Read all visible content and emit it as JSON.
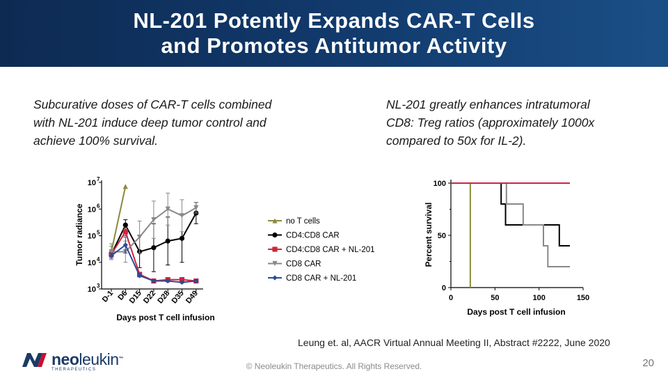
{
  "slide": {
    "title_line1": "NL-201 Potently Expands CAR-T Cells",
    "title_line2": "and Promotes Antitumor Activity",
    "left_text_lines": [
      "Subcurative doses of CAR-T cells combined",
      "with NL-201 induce deep tumor control and",
      "achieve 100% survival."
    ],
    "right_text_lines": [
      "NL-201 greatly  enhances intratumoral",
      "CD8: Treg ratios (approximately 1000x",
      "compared to 50x for IL-2)."
    ],
    "citation": "Leung et. al, AACR Virtual Annual Meeting II, Abstract #2222, June 2020",
    "footer": "© Neoleukin Therapeutics. All Rights Reserved.",
    "page_number": "20",
    "logo": {
      "word_bold": "neo",
      "word_light": "leukin",
      "tm": "™",
      "subtitle": "THERAPEUTICS"
    },
    "colors": {
      "header": "#123b6e",
      "accent_red": "#c8102e"
    }
  },
  "chart_data": [
    {
      "type": "line",
      "title": "",
      "xlabel": "Days post T cell infusion",
      "ylabel": "Tumor radiance",
      "yscale": "log10",
      "ylim_exp": [
        3,
        7
      ],
      "y_tick_labels": [
        {
          "base": "10",
          "exp": "7",
          "value": 7
        },
        {
          "base": "10",
          "exp": "6",
          "value": 6
        },
        {
          "base": "10",
          "exp": "5",
          "value": 5
        },
        {
          "base": "10",
          "exp": "4",
          "value": 4
        },
        {
          "base": "10",
          "exp": "3",
          "value": 3
        }
      ],
      "categories": [
        "D-1",
        "D6",
        "D15",
        "D22",
        "D28",
        "D35",
        "D49"
      ],
      "legend_position": "right",
      "series": [
        {
          "name": "no T cells",
          "color": "#8a8a3c",
          "marker": "tri-up",
          "x": [
            0,
            1
          ],
          "values": [
            4.4,
            6.85
          ],
          "err": [
            0.2,
            0
          ]
        },
        {
          "name": "CD4:CD8 CAR",
          "color": "#000000",
          "marker": "circle",
          "x": [
            0,
            1,
            2,
            3,
            4,
            5,
            6
          ],
          "values": [
            4.3,
            5.4,
            4.4,
            4.55,
            4.8,
            4.9,
            5.85
          ],
          "err": [
            0.15,
            0.2,
            0.6,
            0.9,
            0.9,
            0.9,
            0.4
          ]
        },
        {
          "name": "CD4:CD8 CAR + NL-201",
          "color": "#d0243a",
          "marker": "square",
          "x": [
            0,
            1,
            2,
            3,
            4,
            5,
            6
          ],
          "values": [
            4.3,
            5.15,
            3.55,
            3.3,
            3.35,
            3.35,
            3.3
          ],
          "err": [
            0.1,
            0.15,
            0.05,
            0.03,
            0.03,
            0.05,
            0.03
          ]
        },
        {
          "name": "CD8 CAR",
          "color": "#888888",
          "marker": "tri-down",
          "x": [
            0,
            1,
            2,
            3,
            4,
            5,
            6
          ],
          "values": [
            4.4,
            4.4,
            4.95,
            5.6,
            6.0,
            5.75,
            6.05
          ],
          "err": [
            0.3,
            0.4,
            0.6,
            0.7,
            0.6,
            0.6,
            0.2
          ]
        },
        {
          "name": "CD8 CAR + NL-201",
          "color": "#2c4a9a",
          "marker": "diamond",
          "x": [
            0,
            1,
            2,
            3,
            4,
            5,
            6
          ],
          "values": [
            4.25,
            4.65,
            3.5,
            3.3,
            3.3,
            3.25,
            3.3
          ],
          "err": [
            0.1,
            0.3,
            0.05,
            0.03,
            0.03,
            0.03,
            0.03
          ]
        }
      ],
      "brackets": [
        {
          "from": 1,
          "to": 2,
          "label": ","
        },
        {
          "from": 3,
          "to": 4,
          "label": ","
        }
      ]
    },
    {
      "type": "line",
      "title": "",
      "xlabel": "Days post T cell infusion",
      "ylabel": "Percent survival",
      "step": true,
      "xlim": [
        0,
        150
      ],
      "ylim": [
        0,
        100
      ],
      "x_ticks": [
        0,
        50,
        100,
        150
      ],
      "y_ticks": [
        0,
        50,
        100
      ],
      "x_tick_labels": [
        "0",
        "50",
        "100",
        "150"
      ],
      "y_tick_labels": [
        "0",
        "50",
        "100"
      ],
      "series": [
        {
          "name": "no T cells",
          "color": "#8a8a3c",
          "points": [
            [
              0,
              100
            ],
            [
              22,
              100
            ],
            [
              22,
              0
            ],
            [
              22,
              0
            ]
          ]
        },
        {
          "name": "CD4:CD8 CAR",
          "color": "#000000",
          "points": [
            [
              0,
              100
            ],
            [
              57,
              100
            ],
            [
              57,
              80
            ],
            [
              62,
              80
            ],
            [
              62,
              60
            ],
            [
              123,
              60
            ],
            [
              123,
              40
            ],
            [
              135,
              40
            ]
          ]
        },
        {
          "name": "CD8 CAR",
          "color": "#888888",
          "points": [
            [
              0,
              100
            ],
            [
              63,
              100
            ],
            [
              63,
              80
            ],
            [
              82,
              80
            ],
            [
              82,
              60
            ],
            [
              105,
              60
            ],
            [
              105,
              40
            ],
            [
              110,
              40
            ],
            [
              110,
              20
            ],
            [
              135,
              20
            ]
          ]
        },
        {
          "name": "CD8 CAR + NL-201",
          "color": "#2c4a9a",
          "points": [
            [
              0,
              100
            ],
            [
              135,
              100
            ]
          ]
        },
        {
          "name": "CD4:CD8 CAR + NL-201",
          "color": "#c8254a",
          "points": [
            [
              0,
              100
            ],
            [
              135,
              100
            ]
          ]
        }
      ]
    }
  ]
}
